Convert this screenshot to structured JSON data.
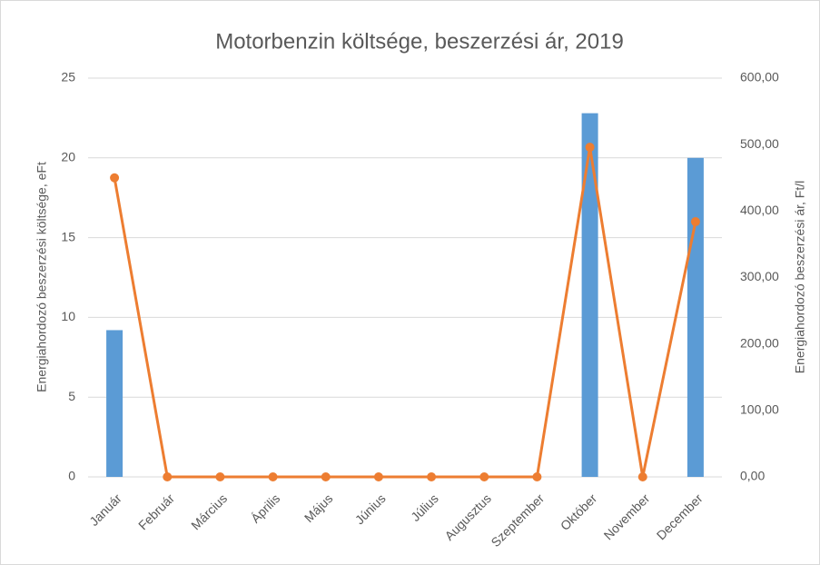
{
  "chart_data": {
    "type": "bar",
    "title": "Motorbenzin költsége, beszerzési ár, 2019",
    "y_label": "Energiahordozó beszerzési költsége, eFt",
    "y2_label": "Energiahordozó beszerzési ár, Ft/l",
    "categories": [
      "Január",
      "Február",
      "Március",
      "Április",
      "Május",
      "Június",
      "Július",
      "Augusztus",
      "Szeptember",
      "Október",
      "November",
      "December"
    ],
    "series": [
      {
        "name": "Energiahordozó beszerzési költsége, eFt",
        "type": "bar",
        "color": "#5b9bd5",
        "values": [
          9.2,
          0,
          0,
          0,
          0,
          0,
          0,
          0,
          0,
          22.8,
          0,
          20.0
        ]
      },
      {
        "name": "Energiahordozó beszerzési ár, Ft/l",
        "type": "line",
        "axis": "y2",
        "color": "#ed7d31",
        "values": [
          450,
          0,
          0,
          0,
          0,
          0,
          0,
          0,
          0,
          496,
          0,
          384
        ]
      }
    ],
    "ylim": [
      0,
      25
    ],
    "yticks": [
      0,
      5,
      10,
      15,
      20,
      25
    ],
    "y2lim": [
      0,
      600
    ],
    "y2ticks": [
      {
        "value": 0,
        "label": "0,00"
      },
      {
        "value": 100,
        "label": "100,00"
      },
      {
        "value": 200,
        "label": "200,00"
      },
      {
        "value": 300,
        "label": "300,00"
      },
      {
        "value": 400,
        "label": "400,00"
      },
      {
        "value": 500,
        "label": "500,00"
      },
      {
        "value": 600,
        "label": "600,00"
      }
    ],
    "grid": true
  }
}
